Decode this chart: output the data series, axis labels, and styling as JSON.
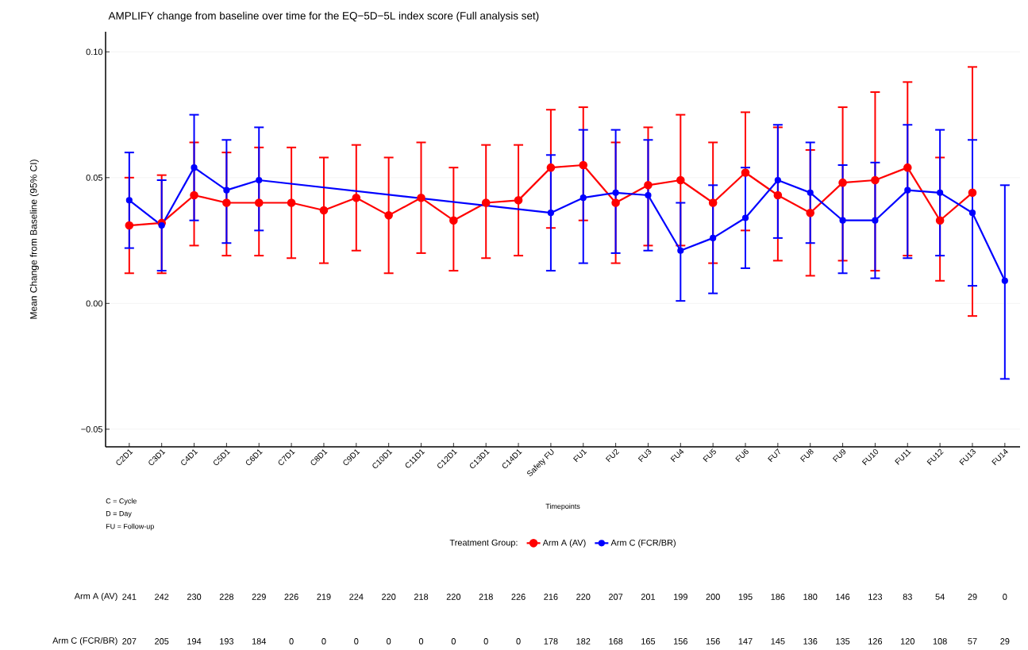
{
  "chart_data": {
    "type": "line",
    "title": "AMPLIFY change from baseline over time for the EQ−5D−5L index score (Full analysis set)",
    "xlabel": "Timepoints",
    "ylabel": "Mean Change from Baseline (95% CI)",
    "legend_title": "Treatment Group:",
    "categories": [
      "C2D1",
      "C3D1",
      "C4D1",
      "C5D1",
      "C6D1",
      "C7D1",
      "C8D1",
      "C9D1",
      "C10D1",
      "C11D1",
      "C12D1",
      "C13D1",
      "C14D1",
      "Safety FU",
      "FU1",
      "FU2",
      "FU3",
      "FU4",
      "FU5",
      "FU6",
      "FU7",
      "FU8",
      "FU9",
      "FU10",
      "FU11",
      "FU12",
      "FU13",
      "FU14"
    ],
    "series": [
      {
        "name": "Arm A (AV)",
        "color": "#ff0000",
        "values": [
          0.031,
          0.032,
          0.043,
          0.04,
          0.04,
          0.04,
          0.037,
          0.042,
          0.035,
          0.042,
          0.033,
          0.04,
          0.041,
          0.054,
          0.055,
          0.04,
          0.047,
          0.049,
          0.04,
          0.052,
          0.043,
          0.036,
          0.048,
          0.049,
          0.054,
          0.033,
          0.044,
          null
        ],
        "errors": [
          [
            0.012,
            0.05
          ],
          [
            0.012,
            0.051
          ],
          [
            0.023,
            0.064
          ],
          [
            0.019,
            0.06
          ],
          [
            0.019,
            0.062
          ],
          [
            0.018,
            0.062
          ],
          [
            0.016,
            0.058
          ],
          [
            0.021,
            0.063
          ],
          [
            0.012,
            0.058
          ],
          [
            0.02,
            0.064
          ],
          [
            0.013,
            0.054
          ],
          [
            0.018,
            0.063
          ],
          [
            0.019,
            0.063
          ],
          [
            0.03,
            0.077
          ],
          [
            0.033,
            0.078
          ],
          [
            0.016,
            0.064
          ],
          [
            0.023,
            0.07
          ],
          [
            0.023,
            0.075
          ],
          [
            0.016,
            0.064
          ],
          [
            0.029,
            0.076
          ],
          [
            0.017,
            0.07
          ],
          [
            0.011,
            0.061
          ],
          [
            0.017,
            0.078
          ],
          [
            0.013,
            0.084
          ],
          [
            0.019,
            0.088
          ],
          [
            0.009,
            0.058
          ],
          [
            -0.005,
            0.094
          ],
          null
        ]
      },
      {
        "name": "Arm C (FCR/BR)",
        "color": "#0000ff",
        "values": [
          0.041,
          0.031,
          0.054,
          0.045,
          0.049,
          null,
          null,
          null,
          null,
          null,
          null,
          null,
          null,
          0.036,
          0.042,
          0.044,
          0.043,
          0.021,
          0.026,
          0.034,
          0.049,
          0.044,
          0.033,
          0.033,
          0.045,
          0.044,
          0.036,
          0.009
        ],
        "errors": [
          [
            0.022,
            0.06
          ],
          [
            0.013,
            0.049
          ],
          [
            0.033,
            0.075
          ],
          [
            0.024,
            0.065
          ],
          [
            0.029,
            0.07
          ],
          null,
          null,
          null,
          null,
          null,
          null,
          null,
          null,
          [
            0.013,
            0.059
          ],
          [
            0.016,
            0.069
          ],
          [
            0.02,
            0.069
          ],
          [
            0.021,
            0.065
          ],
          [
            0.001,
            0.04
          ],
          [
            0.004,
            0.047
          ],
          [
            0.014,
            0.054
          ],
          [
            0.026,
            0.071
          ],
          [
            0.024,
            0.064
          ],
          [
            0.012,
            0.055
          ],
          [
            0.01,
            0.056
          ],
          [
            0.018,
            0.071
          ],
          [
            0.019,
            0.069
          ],
          [
            0.007,
            0.065
          ],
          [
            -0.03,
            0.047
          ]
        ]
      }
    ],
    "ylim": [
      -0.057,
      0.108
    ],
    "yticks": [
      {
        "value": -0.05,
        "label": "−0.05"
      },
      {
        "value": 0.0,
        "label": "0.00"
      },
      {
        "value": 0.05,
        "label": "0.05"
      },
      {
        "value": 0.1,
        "label": "0.10"
      }
    ],
    "grid": "y",
    "legend": "bottom",
    "marker": "circle",
    "line_style": "solid",
    "annotations": [
      "C = Cycle",
      "D = Day",
      "FU = Follow-up",
      "Arm A (AV)",
      "241",
      "242",
      "230",
      "228",
      "229",
      "226",
      "219",
      "224",
      "220",
      "218",
      "220",
      "218",
      "226",
      "216",
      "220",
      "207",
      "201",
      "199",
      "200",
      "195",
      "186",
      "180",
      "146",
      "123",
      "83",
      "54",
      "29",
      "0",
      "Arm C (FCR/BR)",
      "207",
      "205",
      "194",
      "193",
      "184",
      "0",
      "0",
      "0",
      "0",
      "0",
      "0",
      "0",
      "0",
      "178",
      "182",
      "168",
      "165",
      "156",
      "156",
      "147",
      "145",
      "136",
      "135",
      "126",
      "120",
      "108",
      "57",
      "29"
    ]
  }
}
